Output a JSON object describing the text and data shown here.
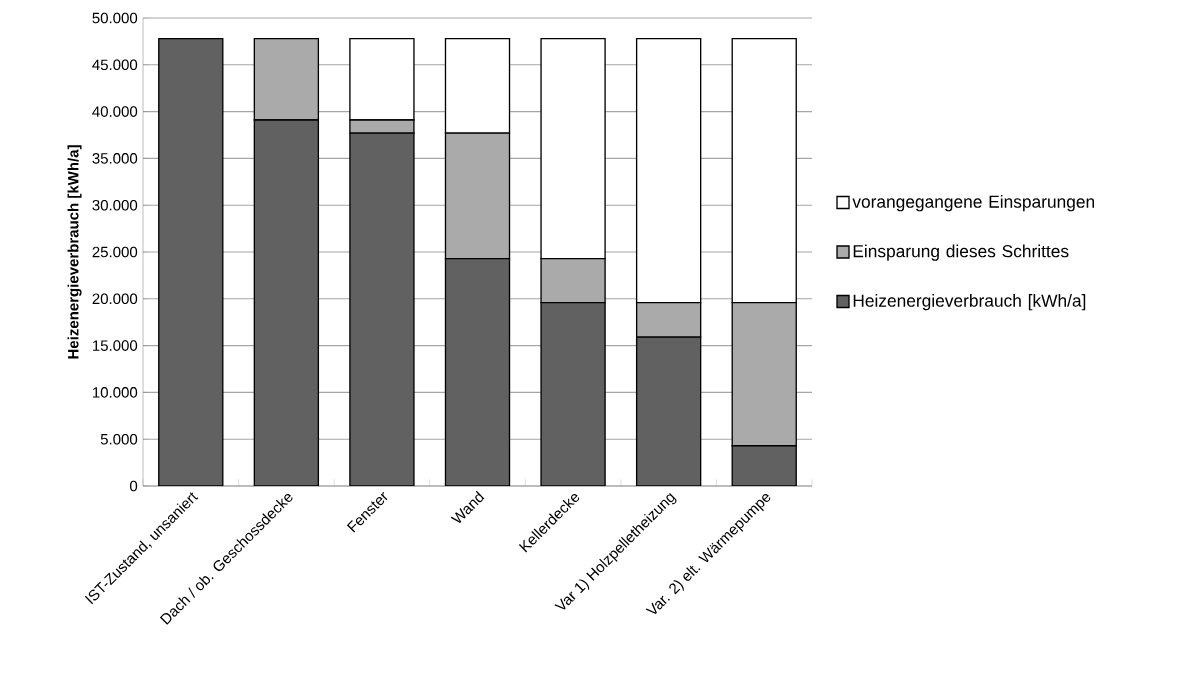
{
  "chart_data": {
    "type": "bar",
    "stacked": true,
    "ylabel": "Heizenergieverbrauch [kWh/a]",
    "categories": [
      "IST-Zustand, unsaniert",
      "Dach / ob. Geschossdecke",
      "Fenster",
      "Wand",
      "Kellerdecke",
      "Var 1) Holzpelletheizung",
      "Var. 2) elt. Wärmepumpe"
    ],
    "series": [
      {
        "name": "Heizenergieverbrauch [kWh/a]",
        "color": "#616161",
        "values": [
          47800,
          39100,
          37700,
          24300,
          19600,
          15900,
          4300
        ]
      },
      {
        "name": "Einsparung dieses Schrittes",
        "color": "#aaaaaa",
        "values": [
          0,
          8700,
          1400,
          13400,
          4700,
          3700,
          15300
        ]
      },
      {
        "name": "vorangegangene Einsparungen",
        "color": "#ffffff",
        "values": [
          0,
          0,
          8700,
          10100,
          23500,
          28200,
          28200
        ]
      }
    ],
    "ylim": [
      0,
      50000
    ],
    "yticks": [
      {
        "value": 0,
        "label": "0"
      },
      {
        "value": 5000,
        "label": "5.000"
      },
      {
        "value": 10000,
        "label": "10.000"
      },
      {
        "value": 15000,
        "label": "15.000"
      },
      {
        "value": 20000,
        "label": "20.000"
      },
      {
        "value": 25000,
        "label": "25.000"
      },
      {
        "value": 30000,
        "label": "30.000"
      },
      {
        "value": 35000,
        "label": "35.000"
      },
      {
        "value": 40000,
        "label": "40.000"
      },
      {
        "value": 45000,
        "label": "45.000"
      },
      {
        "value": 50000,
        "label": "50.000"
      }
    ],
    "grid": "y",
    "legend": "right"
  }
}
